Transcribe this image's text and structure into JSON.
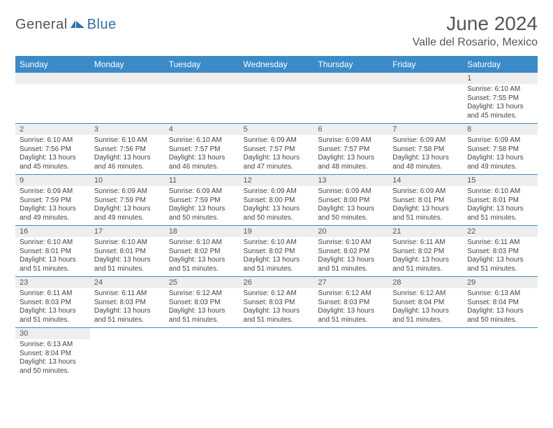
{
  "brand": {
    "part1": "General",
    "part2": "Blue"
  },
  "title": "June 2024",
  "location": "Valle del Rosario, Mexico",
  "colors": {
    "header_bg": "#3b8bc8",
    "header_fg": "#ffffff",
    "daynum_bg": "#eeeeee",
    "rule": "#3b8bc8",
    "brand_blue": "#2f6fa8",
    "text": "#444444"
  },
  "weekdays": [
    "Sunday",
    "Monday",
    "Tuesday",
    "Wednesday",
    "Thursday",
    "Friday",
    "Saturday"
  ],
  "weeks": [
    [
      null,
      null,
      null,
      null,
      null,
      null,
      {
        "n": "1",
        "sr": "6:10 AM",
        "ss": "7:55 PM",
        "dl": "13 hours and 45 minutes."
      }
    ],
    [
      {
        "n": "2",
        "sr": "6:10 AM",
        "ss": "7:56 PM",
        "dl": "13 hours and 45 minutes."
      },
      {
        "n": "3",
        "sr": "6:10 AM",
        "ss": "7:56 PM",
        "dl": "13 hours and 46 minutes."
      },
      {
        "n": "4",
        "sr": "6:10 AM",
        "ss": "7:57 PM",
        "dl": "13 hours and 46 minutes."
      },
      {
        "n": "5",
        "sr": "6:09 AM",
        "ss": "7:57 PM",
        "dl": "13 hours and 47 minutes."
      },
      {
        "n": "6",
        "sr": "6:09 AM",
        "ss": "7:57 PM",
        "dl": "13 hours and 48 minutes."
      },
      {
        "n": "7",
        "sr": "6:09 AM",
        "ss": "7:58 PM",
        "dl": "13 hours and 48 minutes."
      },
      {
        "n": "8",
        "sr": "6:09 AM",
        "ss": "7:58 PM",
        "dl": "13 hours and 49 minutes."
      }
    ],
    [
      {
        "n": "9",
        "sr": "6:09 AM",
        "ss": "7:59 PM",
        "dl": "13 hours and 49 minutes."
      },
      {
        "n": "10",
        "sr": "6:09 AM",
        "ss": "7:59 PM",
        "dl": "13 hours and 49 minutes."
      },
      {
        "n": "11",
        "sr": "6:09 AM",
        "ss": "7:59 PM",
        "dl": "13 hours and 50 minutes."
      },
      {
        "n": "12",
        "sr": "6:09 AM",
        "ss": "8:00 PM",
        "dl": "13 hours and 50 minutes."
      },
      {
        "n": "13",
        "sr": "6:09 AM",
        "ss": "8:00 PM",
        "dl": "13 hours and 50 minutes."
      },
      {
        "n": "14",
        "sr": "6:09 AM",
        "ss": "8:01 PM",
        "dl": "13 hours and 51 minutes."
      },
      {
        "n": "15",
        "sr": "6:10 AM",
        "ss": "8:01 PM",
        "dl": "13 hours and 51 minutes."
      }
    ],
    [
      {
        "n": "16",
        "sr": "6:10 AM",
        "ss": "8:01 PM",
        "dl": "13 hours and 51 minutes."
      },
      {
        "n": "17",
        "sr": "6:10 AM",
        "ss": "8:01 PM",
        "dl": "13 hours and 51 minutes."
      },
      {
        "n": "18",
        "sr": "6:10 AM",
        "ss": "8:02 PM",
        "dl": "13 hours and 51 minutes."
      },
      {
        "n": "19",
        "sr": "6:10 AM",
        "ss": "8:02 PM",
        "dl": "13 hours and 51 minutes."
      },
      {
        "n": "20",
        "sr": "6:10 AM",
        "ss": "8:02 PM",
        "dl": "13 hours and 51 minutes."
      },
      {
        "n": "21",
        "sr": "6:11 AM",
        "ss": "8:02 PM",
        "dl": "13 hours and 51 minutes."
      },
      {
        "n": "22",
        "sr": "6:11 AM",
        "ss": "8:03 PM",
        "dl": "13 hours and 51 minutes."
      }
    ],
    [
      {
        "n": "23",
        "sr": "6:11 AM",
        "ss": "8:03 PM",
        "dl": "13 hours and 51 minutes."
      },
      {
        "n": "24",
        "sr": "6:11 AM",
        "ss": "8:03 PM",
        "dl": "13 hours and 51 minutes."
      },
      {
        "n": "25",
        "sr": "6:12 AM",
        "ss": "8:03 PM",
        "dl": "13 hours and 51 minutes."
      },
      {
        "n": "26",
        "sr": "6:12 AM",
        "ss": "8:03 PM",
        "dl": "13 hours and 51 minutes."
      },
      {
        "n": "27",
        "sr": "6:12 AM",
        "ss": "8:03 PM",
        "dl": "13 hours and 51 minutes."
      },
      {
        "n": "28",
        "sr": "6:12 AM",
        "ss": "8:04 PM",
        "dl": "13 hours and 51 minutes."
      },
      {
        "n": "29",
        "sr": "6:13 AM",
        "ss": "8:04 PM",
        "dl": "13 hours and 50 minutes."
      }
    ],
    [
      {
        "n": "30",
        "sr": "6:13 AM",
        "ss": "8:04 PM",
        "dl": "13 hours and 50 minutes."
      },
      null,
      null,
      null,
      null,
      null,
      null
    ]
  ],
  "labels": {
    "sunrise": "Sunrise:",
    "sunset": "Sunset:",
    "daylight": "Daylight:"
  }
}
